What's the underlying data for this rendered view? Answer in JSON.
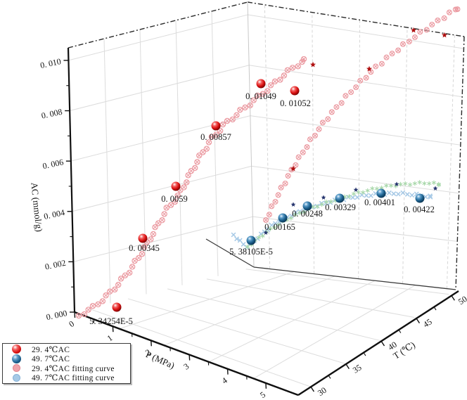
{
  "chart_data": {
    "type": "scatter",
    "subtype": "3d-scatter-with-fitting-curves",
    "grid": true,
    "axes": {
      "z": {
        "label": "AC (mmol/g)",
        "tick_labels": [
          "0. 000",
          "0. 002",
          "0. 004",
          "0. 006",
          "0. 008",
          "0. 010"
        ],
        "range": [
          0.0,
          0.0105
        ]
      },
      "x": {
        "label": "P (MPa)",
        "tick_labels": [
          "0",
          "1",
          "2",
          "3",
          "4",
          "5"
        ],
        "range": [
          0,
          5
        ]
      },
      "y": {
        "label": "T (℃)",
        "tick_labels": [
          "30",
          "35",
          "40",
          "45",
          "50"
        ],
        "range": [
          28,
          51
        ]
      }
    },
    "series": [
      {
        "name": "29. 4℃AC",
        "marker": "sphere",
        "color": "#da1212",
        "points": [
          {
            "label": "5. 34254E-5",
            "ac": 5.34254e-05
          },
          {
            "label": "0. 00345",
            "ac": 0.00345
          },
          {
            "label": "0. 0059",
            "ac": 0.0059
          },
          {
            "label": "0. 00857",
            "ac": 0.00857
          },
          {
            "label": "0. 01049",
            "ac": 0.01049
          },
          {
            "label": "0. 01052",
            "ac": 0.01052
          }
        ]
      },
      {
        "name": "49. 7℃AC",
        "marker": "sphere",
        "color": "#1c608d",
        "points": [
          {
            "label": "5. 38105E-5",
            "ac": 5.38105e-05
          },
          {
            "label": "0. 00165",
            "ac": 0.00165
          },
          {
            "label": "0. 00248",
            "ac": 0.00248
          },
          {
            "label": "0. 00329",
            "ac": 0.00329
          },
          {
            "label": "0. 00401",
            "ac": 0.00401
          },
          {
            "label": "0. 00422",
            "ac": 0.00422
          }
        ]
      },
      {
        "name": "29. 4℃AC fitting curve",
        "marker": "circle-cross",
        "color": "#eb9aa1"
      },
      {
        "name": "49. 7℃AC fitting curve",
        "marker": "x-cross",
        "color": "#a6c9e6"
      }
    ],
    "aux_markers": {
      "green_curve_color": "#a9d8ab",
      "red_star_color": "#b01212",
      "navy_star_color": "#26356e"
    }
  },
  "legend": {
    "items": [
      {
        "label": "29. 4℃AC",
        "marker": "sphere-red"
      },
      {
        "label": "49. 7℃AC",
        "marker": "sphere-blue"
      },
      {
        "label": "29. 4℃AC fitting curve",
        "marker": "dot-lightred"
      },
      {
        "label": "49. 7℃AC fitting curve",
        "marker": "dot-lightblue"
      }
    ]
  }
}
